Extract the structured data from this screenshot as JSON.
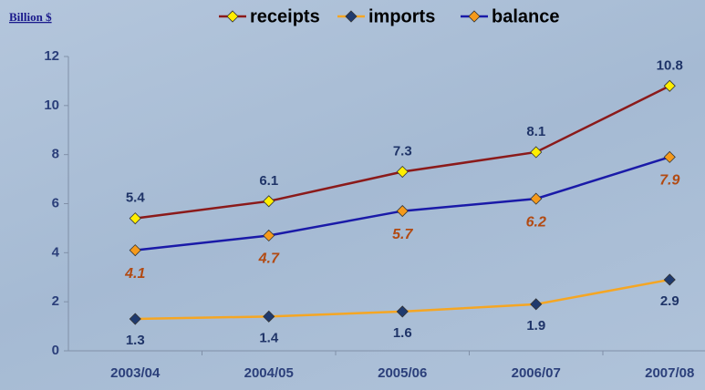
{
  "chart_data": {
    "type": "line",
    "y_label": "Billion $",
    "categories": [
      "2003/04",
      "2004/05",
      "2005/06",
      "2006/07",
      "2007/08"
    ],
    "series": [
      {
        "name": "receipts",
        "color": "#8b1a1a",
        "marker_color": "#ffee00",
        "values": [
          5.4,
          6.1,
          7.3,
          8.1,
          10.8
        ]
      },
      {
        "name": "imports",
        "color": "#f5a623",
        "marker_color": "#1f3a6e",
        "values": [
          1.3,
          1.4,
          1.6,
          1.9,
          2.9
        ]
      },
      {
        "name": "balance",
        "color": "#1a1aa8",
        "marker_color": "#f59a1b",
        "values": [
          4.1,
          4.7,
          5.7,
          6.2,
          7.9
        ]
      }
    ],
    "ylim": [
      0,
      12
    ],
    "yticks": [
      0,
      2,
      4,
      6,
      8,
      10,
      12
    ]
  }
}
